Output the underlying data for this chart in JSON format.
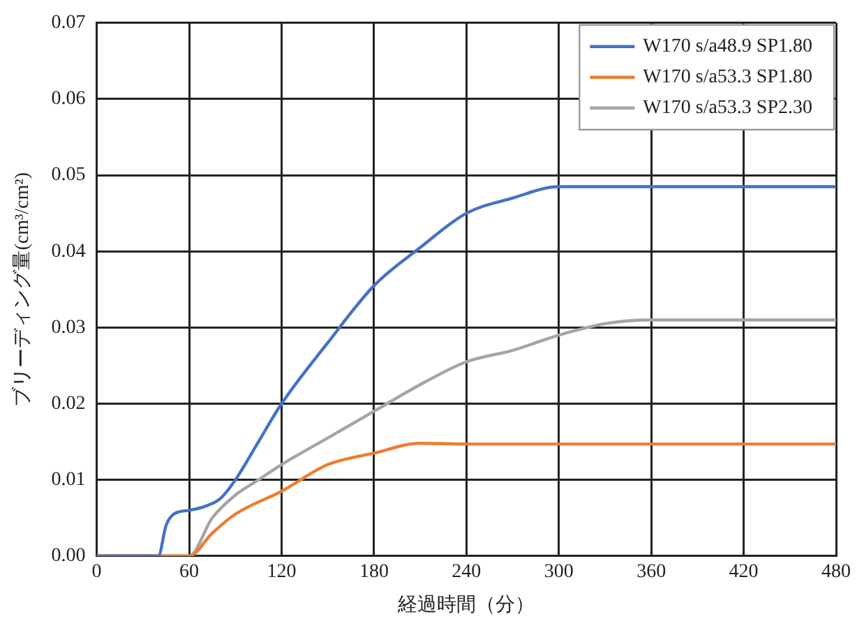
{
  "chart_data": {
    "type": "line",
    "xlabel": "経過時間（分）",
    "ylabel": "ブリーディング量(cm³/cm²)",
    "xlim": [
      0,
      480
    ],
    "xticks": [
      0,
      60,
      120,
      180,
      240,
      300,
      360,
      420,
      480
    ],
    "ylim": [
      0,
      0.07
    ],
    "yticks": [
      {
        "value": 0,
        "label": "0.00"
      },
      {
        "value": 0.01,
        "label": "0.01"
      },
      {
        "value": 0.02,
        "label": "0.02"
      },
      {
        "value": 0.03,
        "label": "0.03"
      },
      {
        "value": 0.04,
        "label": "0.04"
      },
      {
        "value": 0.05,
        "label": "0.05"
      },
      {
        "value": 0.06,
        "label": "0.06"
      },
      {
        "value": 0.07,
        "label": "0.07"
      }
    ],
    "grid": true,
    "legend": "top right",
    "marker": "none",
    "line_style": "solid",
    "series": [
      {
        "name": "W170 s/a48.9 SP1.80",
        "color": "#4472c4",
        "x": [
          0,
          40,
          45,
          50,
          60,
          70,
          80,
          90,
          105,
          120,
          150,
          180,
          210,
          240,
          270,
          300,
          330,
          480
        ],
        "values": [
          0,
          0,
          0.004,
          0.0055,
          0.006,
          0.0065,
          0.0075,
          0.01,
          0.015,
          0.02,
          0.028,
          0.0355,
          0.0405,
          0.045,
          0.047,
          0.0485,
          0.0485,
          0.0485
        ]
      },
      {
        "name": "W170 s/a53.3 SP1.80",
        "color": "#ed7d31",
        "x": [
          0,
          60,
          75,
          90,
          120,
          150,
          180,
          210,
          240,
          480
        ],
        "values": [
          0,
          0,
          0.003,
          0.0055,
          0.0085,
          0.012,
          0.0135,
          0.0148,
          0.0147,
          0.0147
        ]
      },
      {
        "name": "W170 s/a53.3 SP2.30",
        "color": "#a5a5a5",
        "x": [
          0,
          60,
          75,
          90,
          105,
          120,
          150,
          180,
          210,
          240,
          270,
          300,
          330,
          360,
          480
        ],
        "values": [
          0,
          0,
          0.005,
          0.008,
          0.01,
          0.012,
          0.0155,
          0.019,
          0.0225,
          0.0255,
          0.027,
          0.029,
          0.0305,
          0.031,
          0.031
        ]
      }
    ]
  }
}
